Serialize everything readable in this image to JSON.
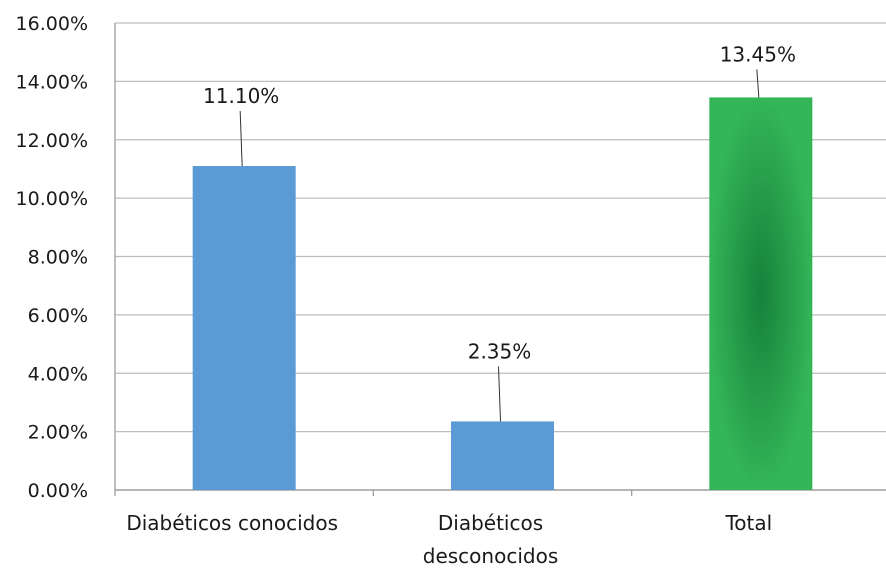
{
  "chart_data": {
    "type": "bar",
    "categories": [
      [
        "Diabéticos conocidos"
      ],
      [
        "Diabéticos",
        "desconocidos"
      ],
      [
        "Total"
      ]
    ],
    "values": [
      11.1,
      2.35,
      13.45
    ],
    "data_labels": [
      "11.10%",
      "2.35%",
      "13.45%"
    ],
    "ylim": [
      0,
      16
    ],
    "yticks": [
      0,
      2,
      4,
      6,
      8,
      10,
      12,
      14,
      16
    ],
    "ytick_labels": [
      "0.00%",
      "2.00%",
      "4.00%",
      "6.00%",
      "8.00%",
      "10.00%",
      "12.00%",
      "14.00%",
      "16.00%"
    ],
    "grid": true,
    "colors": [
      "#5b9bd5",
      "#5b9bd5",
      "#2fa84f"
    ],
    "highlight_color_center": "#16813a"
  }
}
